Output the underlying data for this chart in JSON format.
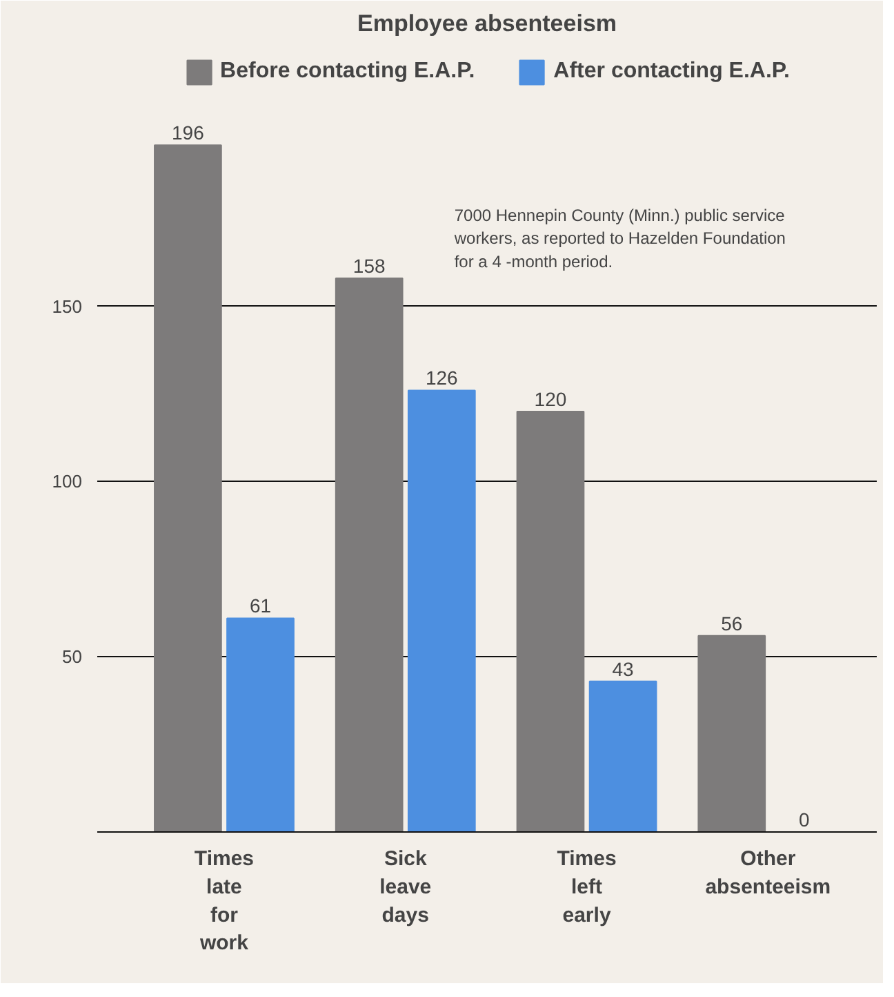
{
  "chart_data": {
    "type": "bar",
    "title": "Employee absenteeism",
    "categories": [
      "Times late for work",
      "Sick leave days",
      "Times left early",
      "Other absenteeism"
    ],
    "series": [
      {
        "name": "Before contacting E.A.P.",
        "color": "#7d7b7b",
        "values": [
          196,
          158,
          120,
          56
        ]
      },
      {
        "name": "After contacting E.A.P.",
        "color": "#4d8fe0",
        "values": [
          61,
          126,
          43,
          0
        ]
      }
    ],
    "ylim": [
      0,
      225
    ],
    "yticks": [
      50,
      100,
      150
    ],
    "grid": "y",
    "legend": "top",
    "data_labels": true,
    "annotations": [
      "7000 Hennepin County (Minn.) public service workers, as reported to Hazelden Foundation for a 4 -month period."
    ]
  }
}
